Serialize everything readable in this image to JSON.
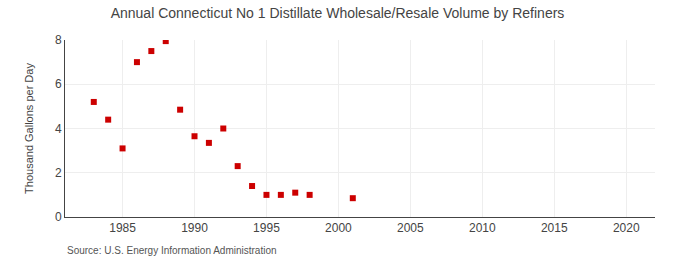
{
  "chart_data": {
    "type": "scatter",
    "title": "Annual Connecticut No 1 Distillate Wholesale/Resale Volume by Refiners",
    "y_label": "Thousand Gallons per Day",
    "annotations": [
      "Source: U.S. Energy Information Administration"
    ],
    "x": [
      1983,
      1984,
      1985,
      1986,
      1987,
      1988,
      1989,
      1990,
      1991,
      1992,
      1993,
      1994,
      1995,
      1996,
      1997,
      1998,
      2001
    ],
    "values": [
      5.2,
      4.4,
      3.1,
      7.0,
      7.5,
      7.95,
      4.85,
      3.65,
      3.35,
      4.0,
      2.3,
      1.4,
      1.0,
      1.0,
      1.1,
      1.0,
      0.85
    ],
    "color": "#cc0000",
    "marker": "square",
    "xlim": [
      1981,
      2022
    ],
    "xticks": [
      1985,
      1990,
      1995,
      2000,
      2005,
      2010,
      2015,
      2020
    ],
    "ylim": [
      0,
      8
    ],
    "yticks": [
      0,
      2,
      4,
      6,
      8
    ],
    "grid": true
  }
}
